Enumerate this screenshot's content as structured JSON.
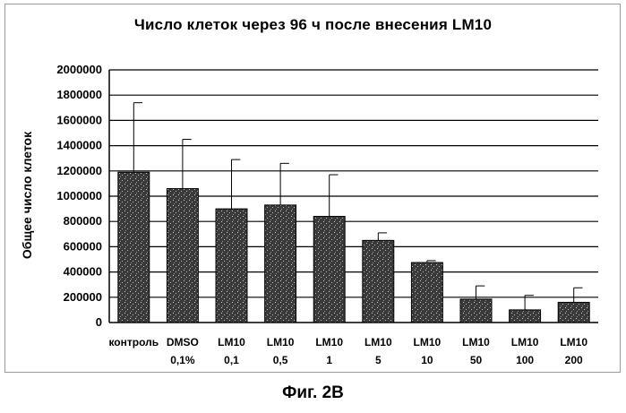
{
  "chart_data": {
    "type": "bar",
    "title": "Число клеток через 96 ч после внесения LM10",
    "ylabel": "Общее число клеток",
    "xlabel": "",
    "ylim": [
      0,
      2000000
    ],
    "yticks": [
      "0",
      "200000",
      "400000",
      "600000",
      "800000",
      "1000000",
      "1200000",
      "1400000",
      "1600000",
      "1800000",
      "2000000"
    ],
    "ytick_values": [
      0,
      200000,
      400000,
      600000,
      800000,
      1000000,
      1200000,
      1400000,
      1600000,
      1800000,
      2000000
    ],
    "grid": true,
    "legend": "none",
    "categories": [
      [
        "контроль"
      ],
      [
        "DMSO",
        "0,1%"
      ],
      [
        "LM10",
        "0,1"
      ],
      [
        "LM10",
        "0,5"
      ],
      [
        "LM10",
        "1"
      ],
      [
        "LM10",
        "5"
      ],
      [
        "LM10",
        "10"
      ],
      [
        "LM10",
        "50"
      ],
      [
        "LM10",
        "100"
      ],
      [
        "LM10",
        "200"
      ]
    ],
    "values": [
      1190000,
      1060000,
      900000,
      930000,
      840000,
      650000,
      475000,
      185000,
      100000,
      160000
    ],
    "error_upper": [
      1740000,
      1450000,
      1290000,
      1260000,
      1170000,
      710000,
      490000,
      290000,
      215000,
      275000
    ],
    "colors": {
      "bar": "#2e2e2e",
      "grid": "#000000",
      "background": "#ffffff"
    }
  },
  "caption": "Фиг. 2В"
}
